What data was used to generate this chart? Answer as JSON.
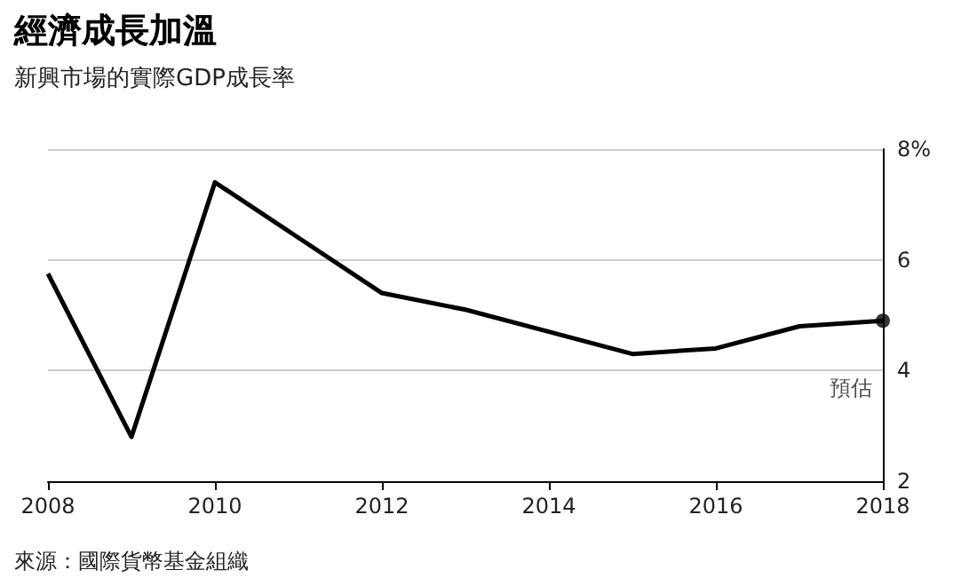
{
  "chart_data": {
    "type": "line",
    "title": "經濟成長加溫",
    "subtitle": "新興市場的實際GDP成長率",
    "x": [
      2008,
      2009,
      2010,
      2011,
      2012,
      2013,
      2014,
      2015,
      2016,
      2017,
      2018
    ],
    "series": [
      {
        "color": "#000000",
        "marker": "none",
        "values": [
          5.75,
          2.8,
          7.4,
          6.4,
          5.4,
          5.1,
          4.7,
          4.3,
          4.4,
          4.8,
          4.9
        ]
      },
      {
        "type": "scatter",
        "marker": "circle",
        "color": "#000000",
        "x": [
          2018
        ],
        "values": [
          4.9
        ]
      }
    ],
    "xlim": [
      2008,
      2018
    ],
    "xticks": [
      2008,
      2010,
      2012,
      2014,
      2016,
      2018
    ],
    "ylim": [
      2,
      8
    ],
    "yticks": [
      2,
      4,
      6,
      {
        "value": 8,
        "label": "8%"
      }
    ],
    "grid": "y",
    "line_style": "solid",
    "annotations": [
      {
        "text": "預估",
        "x": 2018,
        "y": 4.9
      },
      "來源：國際貨幣基金組織"
    ]
  }
}
